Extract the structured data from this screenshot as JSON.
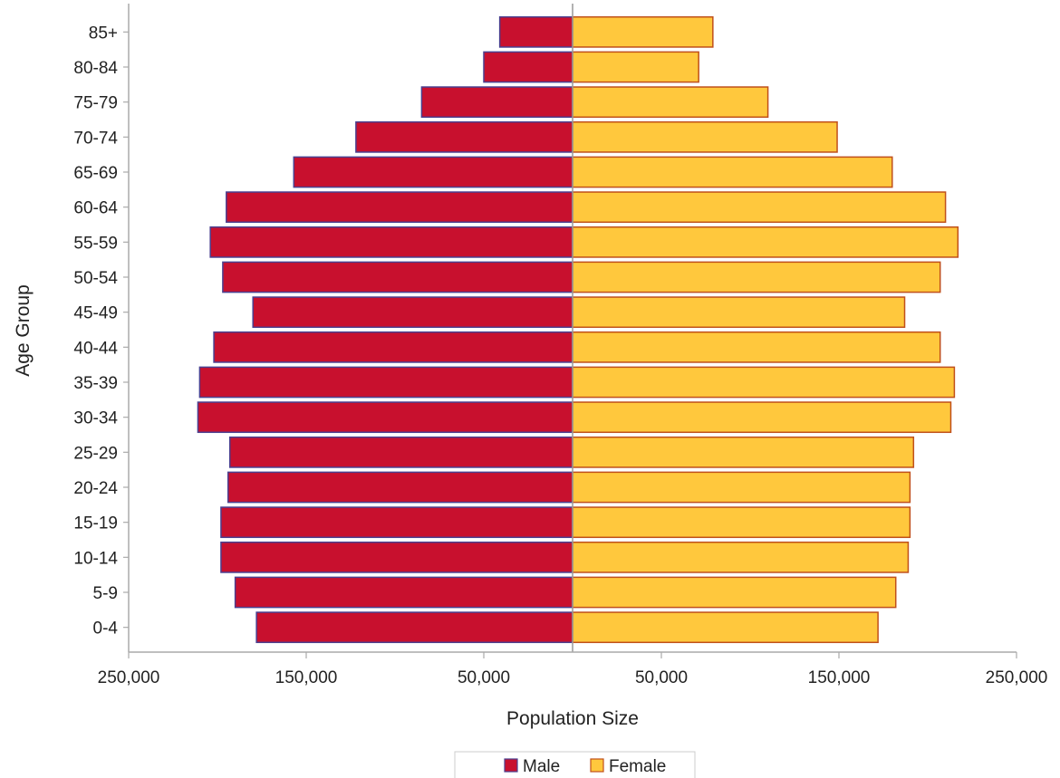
{
  "chart_data": {
    "type": "bar",
    "orientation": "horizontal",
    "layout": "population-pyramid",
    "title": "",
    "xlabel": "Population Size",
    "ylabel": "Age Group",
    "xlim": [
      -250000,
      250000
    ],
    "x_ticks": [
      -250000,
      -150000,
      -50000,
      50000,
      150000,
      250000
    ],
    "x_tick_labels": [
      "250,000",
      "150,000",
      "50,000",
      "50,000",
      "150,000",
      "250,000"
    ],
    "categories": [
      "0-4",
      "5-9",
      "10-14",
      "15-19",
      "20-24",
      "25-29",
      "30-34",
      "35-39",
      "40-44",
      "45-49",
      "50-54",
      "55-59",
      "60-64",
      "65-69",
      "70-74",
      "75-79",
      "80-84",
      "85+"
    ],
    "series": [
      {
        "name": "Male",
        "side": "left",
        "color": "#c8102e",
        "border": "#4a3f8f",
        "values": [
          178000,
          190000,
          198000,
          198000,
          194000,
          193000,
          211000,
          210000,
          202000,
          180000,
          197000,
          204000,
          195000,
          157000,
          122000,
          85000,
          50000,
          41000
        ]
      },
      {
        "name": "Female",
        "side": "right",
        "color": "#ffc83d",
        "border": "#c0501a",
        "values": [
          172000,
          182000,
          189000,
          190000,
          190000,
          192000,
          213000,
          215000,
          207000,
          187000,
          207000,
          217000,
          210000,
          180000,
          149000,
          110000,
          71000,
          79000
        ]
      }
    ],
    "grid": false,
    "legend": "bottom"
  }
}
